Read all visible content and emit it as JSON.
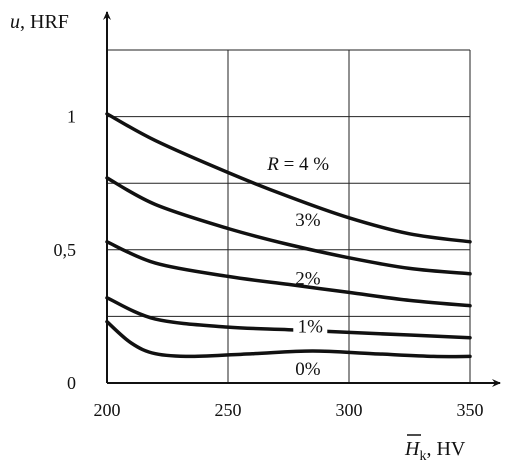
{
  "chart_data": {
    "type": "line",
    "title": "",
    "x_axis": {
      "label_var": "H",
      "label_sub": "k",
      "label_unit": ", HV",
      "range": [
        200,
        350
      ],
      "ticks": [
        200,
        250,
        300,
        350
      ],
      "tick_labels": [
        "200",
        "250",
        "300",
        "350"
      ],
      "grid": [
        250,
        300,
        350
      ]
    },
    "y_axis": {
      "label_var": "u",
      "label_unit": ", HRF",
      "range": [
        0,
        1.25
      ],
      "ticks": [
        0,
        0.5,
        1
      ],
      "tick_labels": [
        "0",
        "0,5",
        "1"
      ],
      "grid": [
        0.25,
        0.5,
        0.75,
        1.0,
        1.25
      ]
    },
    "grid": true,
    "series": [
      {
        "label": "R = 4 %",
        "x": [
          200,
          220,
          250,
          275,
          300,
          325,
          350
        ],
        "y": [
          1.01,
          0.91,
          0.79,
          0.7,
          0.62,
          0.56,
          0.53
        ]
      },
      {
        "label": "3%",
        "x": [
          200,
          220,
          250,
          275,
          300,
          325,
          350
        ],
        "y": [
          0.77,
          0.67,
          0.58,
          0.52,
          0.47,
          0.43,
          0.41
        ]
      },
      {
        "label": "2%",
        "x": [
          200,
          220,
          250,
          275,
          300,
          325,
          350
        ],
        "y": [
          0.53,
          0.45,
          0.4,
          0.37,
          0.34,
          0.31,
          0.29
        ]
      },
      {
        "label": "1%",
        "x": [
          200,
          220,
          250,
          275,
          300,
          325,
          350
        ],
        "y": [
          0.32,
          0.24,
          0.21,
          0.2,
          0.19,
          0.18,
          0.17
        ]
      },
      {
        "label": "0%",
        "x": [
          200,
          210,
          220,
          235,
          260,
          285,
          310,
          335,
          350
        ],
        "y": [
          0.23,
          0.15,
          0.11,
          0.1,
          0.11,
          0.12,
          0.11,
          0.1,
          0.1
        ]
      }
    ]
  }
}
